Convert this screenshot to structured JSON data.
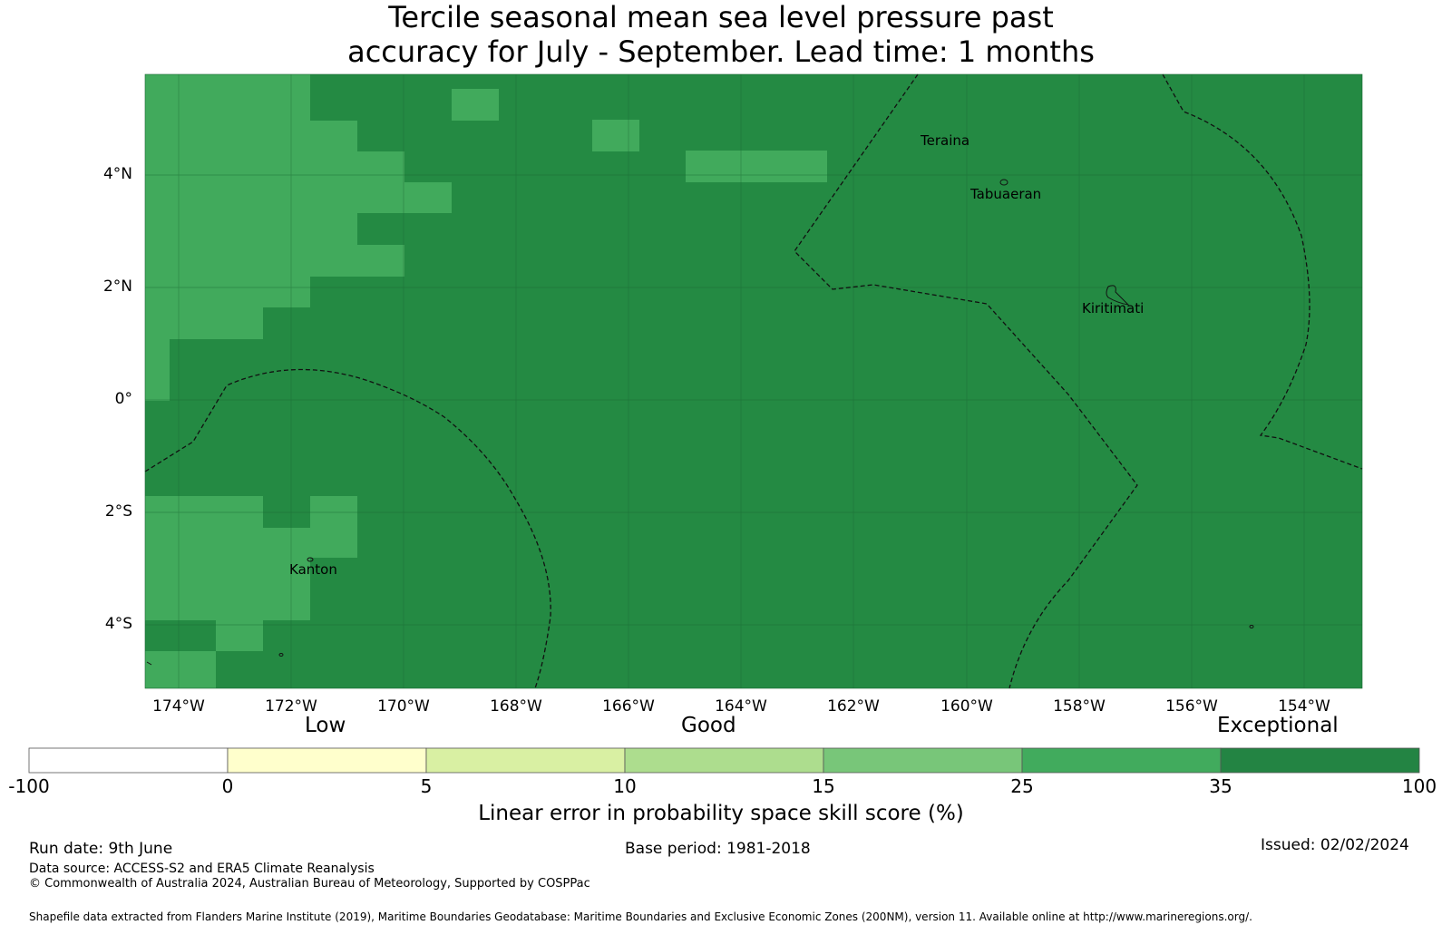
{
  "title": {
    "line1": "Tercile seasonal mean sea level pressure past",
    "line2": "accuracy for July - September. Lead time: 1 months"
  },
  "map": {
    "lat_labels": [
      "4°N",
      "2°N",
      "0°",
      "2°S",
      "4°S"
    ],
    "lon_labels": [
      "174°W",
      "172°W",
      "170°W",
      "168°W",
      "166°W",
      "164°W",
      "162°W",
      "160°W",
      "158°W",
      "156°W",
      "154°W"
    ],
    "places": {
      "teraina": "Teraina",
      "tabuaeran": "Tabuaeran",
      "kiritimati": "Kiritimati",
      "kanton": "Kanton"
    },
    "colors": {
      "exceptional": "#248a43",
      "high": "#41aa5c",
      "background": "#ffffff"
    }
  },
  "colorbar": {
    "category_low": "Low",
    "category_good": "Good",
    "category_exceptional": "Exceptional",
    "ticks": [
      "-100",
      "0",
      "5",
      "10",
      "15",
      "25",
      "35",
      "100"
    ],
    "colors": [
      "#ffffff",
      "#ffffcc",
      "#d9f0a3",
      "#addd8e",
      "#78c679",
      "#41ab5d",
      "#238443"
    ],
    "label": "Linear error in probability space skill score (%)"
  },
  "footer": {
    "run_date": "Run date: 9th June",
    "base_period": "Base period: 1981-2018",
    "issued": "Issued: 02/02/2024",
    "data_source": "Data source: ACCESS-S2 and ERA5 Climate Reanalysis",
    "copyright": "© Commonwealth of Australia 2024, Australian Bureau of Meteorology, Supported by COSPPac",
    "shapefile": "Shapefile data extracted from Flanders Marine Institute (2019), Maritime Boundaries Geodatabase: Maritime Boundaries and Exclusive Economic Zones (200NM), version 11. Available online at http://www.marineregions.org/."
  }
}
